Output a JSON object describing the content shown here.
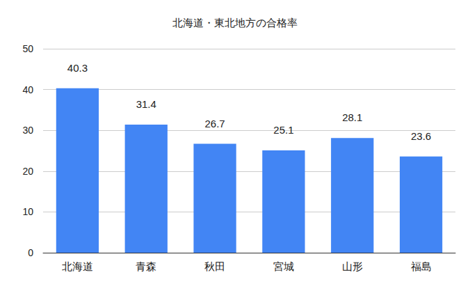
{
  "chart_data": {
    "type": "bar",
    "title": "北海道・東北地方の合格率",
    "categories": [
      "北海道",
      "青森",
      "秋田",
      "宮城",
      "山形",
      "福島"
    ],
    "values": [
      40.3,
      31.4,
      26.7,
      25.1,
      28.1,
      23.6
    ],
    "color": "#4285f4",
    "ylim": [
      0,
      50
    ],
    "yticks": [
      0,
      10,
      20,
      30,
      40,
      50
    ],
    "grid": true,
    "data_labels": true
  }
}
